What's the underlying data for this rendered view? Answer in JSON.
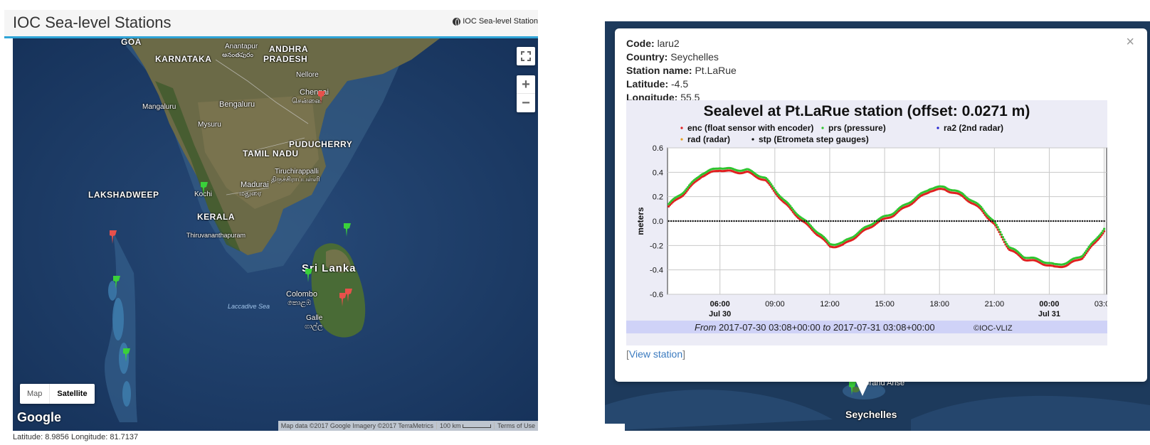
{
  "left": {
    "title": "IOC Sea-level Stations",
    "crumb": "IOC Sea-level Station",
    "controls": {
      "map_label": "Map",
      "satellite_label": "Satellite",
      "zoom_in": "+",
      "zoom_out": "−"
    },
    "logo": "Google",
    "attribution": [
      "Map data ©2017 Google Imagery ©2017 TerraMetrics",
      "100 km",
      "Terms of Use"
    ],
    "coords": "Latitude: 8.9856 Longitude: 81.7137",
    "labels": {
      "goa": "GOA",
      "karnataka": "KARNATAKA",
      "anantapur": "Anantapur",
      "anantapur_local": "అనంతపురం",
      "andhra": "ANDHRA",
      "pradesh": "PRADESH",
      "nellore": "Nellore",
      "chennai": "Chennai",
      "chennai_local": "சென்னை",
      "mangaluru": "Mangaluru",
      "bengaluru": "Bengaluru",
      "mysuru": "Mysuru",
      "puducherry": "PUDUCHERRY",
      "tamil_nadu": "TAMIL NADU",
      "tiruchirappalli": "Tiruchirappalli",
      "tiruchirappalli_local": "திருச்சிராப்பள்ளி",
      "madurai": "Madurai",
      "madurai_local": "மதுரை",
      "lakshadweep": "LAKSHADWEEP",
      "kochi": "Kochi",
      "kerala": "KERALA",
      "thiruvananthapuram": "Thiruvananthapuram",
      "sri_lanka": "Sri Lanka",
      "colombo": "Colombo",
      "colombo_local": "කොළඹ",
      "galle": "Galle",
      "galle_local": "ගාල්ල",
      "laccadive": "Laccadive Sea"
    },
    "pin_colors": {
      "green": "#3ad13a",
      "red": "#e8504b"
    }
  },
  "right": {
    "station": [
      {
        "key": "Code:",
        "value": "laru2"
      },
      {
        "key": "Country:",
        "value": "Seychelles"
      },
      {
        "key": "Station name:",
        "value": "Pt.LaRue"
      },
      {
        "key": "Latitude:",
        "value": "-4.5"
      },
      {
        "key": "Longitude:",
        "value": "55.5"
      }
    ],
    "close": "×",
    "view_link": "View station",
    "seychelles": "Seychelles",
    "grand_anse": "Grand Anse"
  },
  "chart_data": {
    "type": "line",
    "title": "Sealevel at Pt.LaRue station (offset: 0.0271 m)",
    "ylabel": "meters",
    "xlabel": "",
    "ylim": [
      -0.6,
      0.6
    ],
    "yticks": [
      "0.6",
      "0.4",
      "0.2",
      "0.0",
      "-0.2",
      "-0.4",
      "-0.6"
    ],
    "xlim_hours": [
      3.133,
      27.133
    ],
    "xticks": [
      {
        "hour": 6,
        "label": "06:00",
        "sub": "Jul 30",
        "bold": true
      },
      {
        "hour": 9,
        "label": "09:00",
        "sub": "",
        "bold": false
      },
      {
        "hour": 12,
        "label": "12:00",
        "sub": "",
        "bold": false
      },
      {
        "hour": 15,
        "label": "15:00",
        "sub": "",
        "bold": false
      },
      {
        "hour": 18,
        "label": "18:00",
        "sub": "",
        "bold": false
      },
      {
        "hour": 21,
        "label": "21:00",
        "sub": "",
        "bold": false
      },
      {
        "hour": 24,
        "label": "00:00",
        "sub": "Jul 31",
        "bold": true
      },
      {
        "hour": 27,
        "label": "03:00",
        "sub": "",
        "bold": false
      }
    ],
    "legend": [
      {
        "name": "enc (float sensor with encoder)",
        "color": "#e02020"
      },
      {
        "name": "prs (pressure)",
        "color": "#2fc42f"
      },
      {
        "name": "ra2 (2nd radar)",
        "color": "#2020d0"
      },
      {
        "name": "rad (radar)",
        "color": "#e6a020"
      },
      {
        "name": "stp (Etrometa step gauges)",
        "color": "#111111"
      }
    ],
    "footer_from": "From",
    "footer_start": "2017-07-30 03:08+00:00",
    "footer_to": "to",
    "footer_end": "2017-07-31 03:08+00:00",
    "footer_credit": "©IOC-VLIZ",
    "series": [
      {
        "name": "enc (float sensor with encoder)",
        "color": "#e02020",
        "x": [
          3.2,
          4.0,
          5.0,
          6.0,
          6.8,
          7.5,
          8.5,
          9.5,
          10.5,
          11.5,
          12.0,
          12.7,
          13.5,
          14.5,
          15.5,
          16.5,
          17.5,
          18.3,
          19.3,
          20.3,
          21.0,
          21.8,
          22.6,
          23.5,
          24.3,
          25.0,
          25.8,
          26.5,
          27.0
        ],
        "y": [
          0.12,
          0.22,
          0.37,
          0.42,
          0.4,
          0.4,
          0.33,
          0.15,
          0.0,
          -0.13,
          -0.21,
          -0.2,
          -0.12,
          -0.02,
          0.05,
          0.15,
          0.25,
          0.26,
          0.2,
          0.09,
          -0.03,
          -0.23,
          -0.31,
          -0.34,
          -0.38,
          -0.36,
          -0.3,
          -0.18,
          -0.08
        ]
      },
      {
        "name": "prs (pressure)",
        "color": "#2fc42f",
        "x": [
          3.2,
          4.0,
          5.0,
          6.0,
          6.8,
          7.5,
          8.5,
          9.5,
          10.5,
          11.5,
          12.0,
          12.7,
          13.5,
          14.5,
          15.5,
          16.5,
          17.5,
          18.3,
          19.3,
          20.3,
          21.0,
          21.8,
          22.6,
          23.5,
          24.3,
          25.0,
          25.8,
          26.5,
          27.0
        ],
        "y": [
          0.14,
          0.24,
          0.39,
          0.44,
          0.42,
          0.42,
          0.35,
          0.17,
          0.02,
          -0.11,
          -0.19,
          -0.18,
          -0.1,
          0.0,
          0.07,
          0.17,
          0.27,
          0.28,
          0.22,
          0.11,
          -0.01,
          -0.21,
          -0.29,
          -0.32,
          -0.36,
          -0.34,
          -0.28,
          -0.16,
          -0.06
        ]
      },
      {
        "name": "stp (Etrometa step gauges)",
        "color": "#111111",
        "x": [
          3.2,
          27.0
        ],
        "y": [
          0.0,
          0.0
        ]
      }
    ]
  }
}
